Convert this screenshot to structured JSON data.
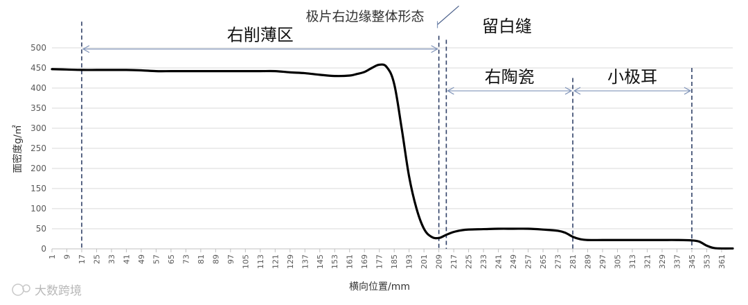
{
  "chart_data": {
    "type": "line",
    "title": "极片右边缘整体形态",
    "xlabel": "横向位置/mm",
    "ylabel": "面密度g/㎡",
    "ylim": [
      0,
      500
    ],
    "yticks": [
      0,
      50,
      100,
      150,
      200,
      250,
      300,
      350,
      400,
      450,
      500
    ],
    "xlim": [
      1,
      367
    ],
    "xticks": [
      1,
      9,
      17,
      25,
      33,
      41,
      49,
      57,
      65,
      73,
      81,
      89,
      97,
      105,
      113,
      121,
      129,
      137,
      145,
      153,
      161,
      169,
      177,
      185,
      193,
      201,
      209,
      217,
      225,
      233,
      241,
      249,
      257,
      265,
      273,
      281,
      289,
      297,
      305,
      313,
      321,
      329,
      337,
      345,
      353,
      361
    ],
    "grid": "horizontal",
    "line_color": "#000000",
    "series": [
      {
        "x": [
          1,
          9,
          17,
          25,
          33,
          41,
          49,
          57,
          65,
          73,
          81,
          89,
          97,
          105,
          113,
          121,
          129,
          137,
          145,
          153,
          161,
          165,
          169,
          173,
          177,
          181,
          185,
          189,
          193,
          197,
          201,
          205,
          209,
          213,
          217,
          221,
          225,
          233,
          241,
          249,
          257,
          265,
          273,
          277,
          281,
          285,
          289,
          297,
          305,
          313,
          321,
          329,
          337,
          345,
          349,
          353,
          357,
          361,
          367
        ],
        "y": [
          447,
          446,
          445,
          445,
          445,
          445,
          444,
          442,
          442,
          442,
          442,
          442,
          442,
          442,
          442,
          442,
          439,
          437,
          433,
          430,
          431,
          435,
          440,
          450,
          458,
          452,
          410,
          300,
          180,
          100,
          50,
          30,
          27,
          35,
          42,
          46,
          48,
          49,
          50,
          50,
          50,
          48,
          45,
          40,
          30,
          24,
          22,
          22,
          22,
          22,
          22,
          22,
          22,
          21,
          18,
          8,
          2,
          1,
          1
        ]
      }
    ],
    "boundaries": [
      {
        "x": 17,
        "y_top": 565
      },
      {
        "x": 209,
        "y_top": 530
      },
      {
        "x": 213,
        "y_top": 520
      },
      {
        "x": 281,
        "y_top": 425
      },
      {
        "x": 345,
        "y_top": 450
      }
    ],
    "region_spans": [
      {
        "label": "右削薄区",
        "x_from": 17,
        "x_to": 209,
        "y": 497
      },
      {
        "label": "右陶瓷",
        "x_from": 213,
        "x_to": 281,
        "y": 393
      },
      {
        "label": "小极耳",
        "x_from": 281,
        "x_to": 345,
        "y": 393
      }
    ],
    "annotations": [
      {
        "label": "留白缝",
        "x": 222,
        "y": 556
      }
    ]
  },
  "watermark": "大数跨境"
}
